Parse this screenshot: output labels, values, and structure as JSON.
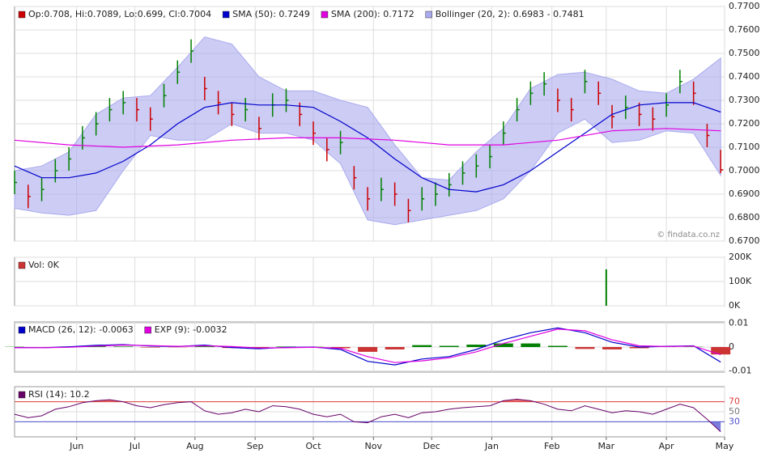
{
  "x_axis": {
    "xlim": [
      0,
      366
    ],
    "xticks": [
      {
        "value": 32,
        "label": "Jun"
      },
      {
        "value": 62,
        "label": "Jul"
      },
      {
        "value": 93,
        "label": "Aug"
      },
      {
        "value": 124,
        "label": "Sep"
      },
      {
        "value": 154,
        "label": "Oct"
      },
      {
        "value": 185,
        "label": "Nov"
      },
      {
        "value": 215,
        "label": "Dec"
      },
      {
        "value": 246,
        "label": "Jan"
      },
      {
        "value": 277,
        "label": "Feb"
      },
      {
        "value": 305,
        "label": "Mar"
      },
      {
        "value": 336,
        "label": "Apr"
      },
      {
        "value": 366,
        "label": "May"
      }
    ]
  },
  "watermark": "© findata.co.nz",
  "chart_data": [
    {
      "type": "price",
      "name": "Op:0.708, Hi:0.7089, Lo:0.699, Cl:0.7004",
      "up_color": "#008000",
      "down_color": "#cc0000",
      "x": [
        0,
        7,
        14,
        21,
        28,
        35,
        42,
        49,
        56,
        63,
        70,
        77,
        84,
        91,
        98,
        105,
        112,
        119,
        126,
        133,
        140,
        147,
        154,
        161,
        168,
        175,
        182,
        189,
        196,
        203,
        210,
        217,
        224,
        231,
        238,
        245,
        252,
        259,
        266,
        273,
        280,
        287,
        294,
        301,
        308,
        315,
        322,
        329,
        336,
        343,
        350,
        357,
        364
      ],
      "high": [
        0.7,
        0.694,
        0.697,
        0.705,
        0.71,
        0.719,
        0.725,
        0.731,
        0.734,
        0.731,
        0.727,
        0.737,
        0.747,
        0.756,
        0.74,
        0.734,
        0.729,
        0.731,
        0.723,
        0.733,
        0.735,
        0.729,
        0.721,
        0.714,
        0.717,
        0.702,
        0.693,
        0.697,
        0.695,
        0.688,
        0.693,
        0.695,
        0.699,
        0.704,
        0.707,
        0.711,
        0.721,
        0.731,
        0.738,
        0.742,
        0.735,
        0.731,
        0.743,
        0.738,
        0.728,
        0.732,
        0.729,
        0.727,
        0.733,
        0.743,
        0.738,
        0.72,
        0.7089
      ],
      "low": [
        0.69,
        0.684,
        0.687,
        0.695,
        0.7,
        0.709,
        0.715,
        0.721,
        0.724,
        0.721,
        0.717,
        0.727,
        0.737,
        0.746,
        0.73,
        0.724,
        0.719,
        0.721,
        0.713,
        0.723,
        0.725,
        0.719,
        0.711,
        0.704,
        0.707,
        0.692,
        0.683,
        0.687,
        0.685,
        0.678,
        0.683,
        0.685,
        0.689,
        0.694,
        0.697,
        0.701,
        0.711,
        0.721,
        0.728,
        0.732,
        0.725,
        0.721,
        0.733,
        0.728,
        0.718,
        0.722,
        0.719,
        0.717,
        0.723,
        0.733,
        0.728,
        0.71,
        0.699
      ],
      "close": [
        0.695,
        0.689,
        0.692,
        0.7,
        0.705,
        0.714,
        0.72,
        0.726,
        0.729,
        0.726,
        0.722,
        0.732,
        0.742,
        0.751,
        0.735,
        0.729,
        0.724,
        0.726,
        0.718,
        0.728,
        0.73,
        0.724,
        0.716,
        0.709,
        0.712,
        0.697,
        0.688,
        0.692,
        0.69,
        0.683,
        0.688,
        0.69,
        0.694,
        0.699,
        0.702,
        0.706,
        0.716,
        0.726,
        0.733,
        0.737,
        0.73,
        0.726,
        0.738,
        0.733,
        0.723,
        0.727,
        0.724,
        0.722,
        0.728,
        0.738,
        0.733,
        0.715,
        0.7004
      ],
      "overlays": [
        {
          "name": "SMA (50): 0.7249",
          "color": "#0000cc",
          "x": [
            0,
            14,
            28,
            42,
            56,
            70,
            84,
            98,
            112,
            126,
            140,
            154,
            168,
            182,
            196,
            210,
            224,
            238,
            252,
            266,
            280,
            294,
            308,
            322,
            336,
            350,
            364
          ],
          "values": [
            0.702,
            0.697,
            0.697,
            0.699,
            0.704,
            0.711,
            0.72,
            0.727,
            0.729,
            0.728,
            0.728,
            0.727,
            0.721,
            0.714,
            0.705,
            0.697,
            0.692,
            0.691,
            0.694,
            0.7,
            0.708,
            0.716,
            0.724,
            0.728,
            0.729,
            0.729,
            0.725
          ]
        },
        {
          "name": "SMA (200): 0.7172",
          "color": "#e000e0",
          "x": [
            0,
            28,
            56,
            84,
            112,
            140,
            168,
            196,
            224,
            252,
            280,
            308,
            336,
            364
          ],
          "values": [
            0.713,
            0.711,
            0.71,
            0.711,
            0.713,
            0.714,
            0.714,
            0.713,
            0.711,
            0.711,
            0.713,
            0.717,
            0.718,
            0.717
          ]
        }
      ],
      "band": {
        "name": "Bollinger (20, 2): 0.6983 - 0.7481",
        "color": "#aaaaee",
        "x": [
          0,
          14,
          28,
          42,
          56,
          70,
          84,
          98,
          112,
          126,
          140,
          154,
          168,
          182,
          196,
          210,
          224,
          238,
          252,
          266,
          280,
          294,
          308,
          322,
          336,
          350,
          364
        ],
        "upper": [
          0.7,
          0.702,
          0.708,
          0.724,
          0.731,
          0.732,
          0.744,
          0.757,
          0.754,
          0.74,
          0.734,
          0.734,
          0.73,
          0.727,
          0.711,
          0.697,
          0.696,
          0.708,
          0.718,
          0.735,
          0.741,
          0.742,
          0.739,
          0.734,
          0.733,
          0.739,
          0.748
        ],
        "lower": [
          0.684,
          0.682,
          0.681,
          0.683,
          0.7,
          0.715,
          0.713,
          0.713,
          0.72,
          0.716,
          0.716,
          0.713,
          0.703,
          0.679,
          0.677,
          0.679,
          0.681,
          0.683,
          0.688,
          0.7,
          0.716,
          0.722,
          0.712,
          0.713,
          0.717,
          0.716,
          0.698
        ]
      },
      "ylim": [
        0.67,
        0.77
      ],
      "yticks": [
        {
          "value": 0.67,
          "label": "0.6700"
        },
        {
          "value": 0.68,
          "label": "0.6800"
        },
        {
          "value": 0.69,
          "label": "0.6900"
        },
        {
          "value": 0.7,
          "label": "0.7000"
        },
        {
          "value": 0.71,
          "label": "0.7100"
        },
        {
          "value": 0.72,
          "label": "0.7200"
        },
        {
          "value": 0.73,
          "label": "0.7300"
        },
        {
          "value": 0.74,
          "label": "0.7400"
        },
        {
          "value": 0.75,
          "label": "0.7500"
        },
        {
          "value": 0.76,
          "label": "0.7600"
        },
        {
          "value": 0.77,
          "label": "0.7700"
        }
      ]
    },
    {
      "type": "volume",
      "name": "Vol: 0K",
      "legend_color": "#cc3333",
      "color": "#008000",
      "x": [
        305
      ],
      "values": [
        150000
      ],
      "ylim": [
        0,
        200000
      ],
      "yticks": [
        {
          "value": 0,
          "label": "0K"
        },
        {
          "value": 100000,
          "label": "100K"
        },
        {
          "value": 200000,
          "label": "200K"
        }
      ]
    },
    {
      "type": "macd",
      "series": [
        {
          "name": "MACD (26, 12): -0.0063",
          "color": "#0000cc",
          "x": [
            0,
            14,
            28,
            42,
            56,
            70,
            84,
            98,
            112,
            126,
            140,
            154,
            168,
            182,
            196,
            210,
            224,
            238,
            252,
            266,
            280,
            294,
            308,
            322,
            336,
            350,
            364
          ],
          "values": [
            -0.0002,
            -0.0003,
            0.0001,
            0.0007,
            0.001,
            0.0004,
            0.0002,
            0.0008,
            -0.0002,
            -0.0007,
            -0.0001,
            0.0,
            -0.001,
            -0.006,
            -0.0075,
            -0.005,
            -0.004,
            -0.001,
            0.003,
            0.006,
            0.008,
            0.006,
            0.002,
            0.0,
            0.0003,
            0.0005,
            -0.0063
          ]
        },
        {
          "name": "EXP (9): -0.0032",
          "color": "#e000e0",
          "x": [
            0,
            14,
            28,
            42,
            56,
            70,
            84,
            98,
            112,
            126,
            140,
            154,
            168,
            182,
            196,
            210,
            224,
            238,
            252,
            266,
            280,
            294,
            308,
            322,
            336,
            350,
            364
          ],
          "values": [
            -0.0003,
            -0.0003,
            -0.0001,
            0.0004,
            0.0008,
            0.0006,
            0.0003,
            0.0005,
            0.0002,
            -0.0004,
            -0.0003,
            -0.0001,
            -0.0005,
            -0.004,
            -0.0065,
            -0.0058,
            -0.0045,
            -0.002,
            0.0015,
            0.0045,
            0.0075,
            0.0068,
            0.003,
            0.0005,
            0.0002,
            0.0004,
            -0.0032
          ]
        }
      ],
      "histogram": {
        "up_color": "#008000",
        "down_color": "#cc3333",
        "x": [
          0,
          14,
          28,
          42,
          56,
          70,
          84,
          98,
          112,
          126,
          140,
          154,
          168,
          182,
          196,
          210,
          224,
          238,
          252,
          266,
          280,
          294,
          308,
          322,
          336,
          350,
          364
        ],
        "values": [
          0.0001,
          0,
          0.0002,
          0.0003,
          0.0002,
          -0.0002,
          -0.0001,
          0.0003,
          -0.0004,
          -0.0003,
          0.0002,
          0.0001,
          -0.0005,
          -0.002,
          -0.001,
          0.0008,
          0.0005,
          0.001,
          0.0015,
          0.0015,
          0.0005,
          -0.0008,
          -0.001,
          -0.0005,
          0.0001,
          0.0001,
          -0.0031
        ]
      },
      "ylim": [
        -0.0105,
        0.0105
      ],
      "yticks": [
        0.01,
        0,
        -0.01
      ]
    },
    {
      "type": "rsi",
      "series": [
        {
          "name": "RSI (14): 10.2",
          "color": "#660066",
          "x": [
            0,
            7,
            14,
            21,
            28,
            35,
            42,
            49,
            56,
            63,
            70,
            77,
            84,
            91,
            98,
            105,
            112,
            119,
            126,
            133,
            140,
            147,
            154,
            161,
            168,
            175,
            182,
            189,
            196,
            203,
            210,
            217,
            224,
            231,
            238,
            245,
            252,
            259,
            266,
            273,
            280,
            287,
            294,
            301,
            308,
            315,
            322,
            329,
            336,
            343,
            350,
            357,
            364
          ],
          "values": [
            45,
            38,
            42,
            55,
            60,
            68,
            72,
            74,
            70,
            62,
            58,
            64,
            68,
            70,
            52,
            45,
            48,
            55,
            50,
            62,
            60,
            55,
            45,
            40,
            45,
            30,
            28,
            40,
            45,
            38,
            48,
            50,
            55,
            58,
            60,
            62,
            72,
            75,
            72,
            65,
            55,
            52,
            62,
            55,
            48,
            52,
            50,
            45,
            55,
            65,
            58,
            35,
            10.2
          ]
        }
      ],
      "ref_lines": [
        {
          "value": 70,
          "color": "#e04040",
          "side": "above"
        },
        {
          "value": 30,
          "color": "#5050d0",
          "side": "below"
        }
      ],
      "ylim": [
        0,
        100
      ],
      "yticks": [
        70,
        50,
        30
      ]
    }
  ]
}
